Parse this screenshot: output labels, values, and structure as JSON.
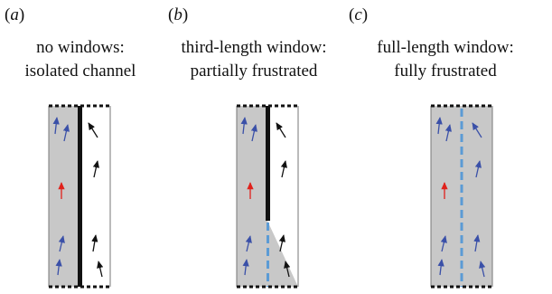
{
  "panels": [
    {
      "label_open": "(",
      "label_letter": "a",
      "label_close": ")",
      "title_line1": "no windows:",
      "title_line2": "isolated channel"
    },
    {
      "label_open": "(",
      "label_letter": "b",
      "label_close": ")",
      "title_line1": "third-length window:",
      "title_line2": "partially frustrated"
    },
    {
      "label_open": "(",
      "label_letter": "c",
      "label_close": ")",
      "title_line1": "full-length window:",
      "title_line2": "fully frustrated"
    }
  ],
  "colors": {
    "shade": "#c8c8c8",
    "wall": "#111111",
    "window": "#5b9bd5",
    "arrow_blue": "#3a50a8",
    "arrow_red": "#e0211b",
    "arrow_black": "#111111"
  }
}
